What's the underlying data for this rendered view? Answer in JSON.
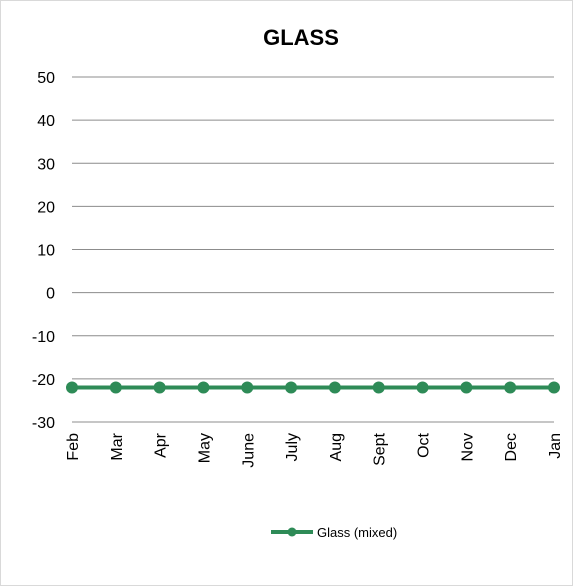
{
  "chart_data": {
    "type": "line",
    "title": "GLASS",
    "xlabel": "",
    "ylabel": "",
    "categories": [
      "Feb",
      "Mar",
      "Apr",
      "May",
      "June",
      "July",
      "Aug",
      "Sept",
      "Oct",
      "Nov",
      "Dec",
      "Jan"
    ],
    "series": [
      {
        "name": "Glass (mixed)",
        "values": [
          -22,
          -22,
          -22,
          -22,
          -22,
          -22,
          -22,
          -22,
          -22,
          -22,
          -22,
          -22
        ],
        "color": "#2e8b57"
      }
    ],
    "ylim": [
      -30,
      50
    ],
    "yticks": [
      50,
      40,
      30,
      20,
      10,
      0,
      -10,
      -20,
      -30
    ],
    "grid": true,
    "legend_position": "bottom"
  }
}
